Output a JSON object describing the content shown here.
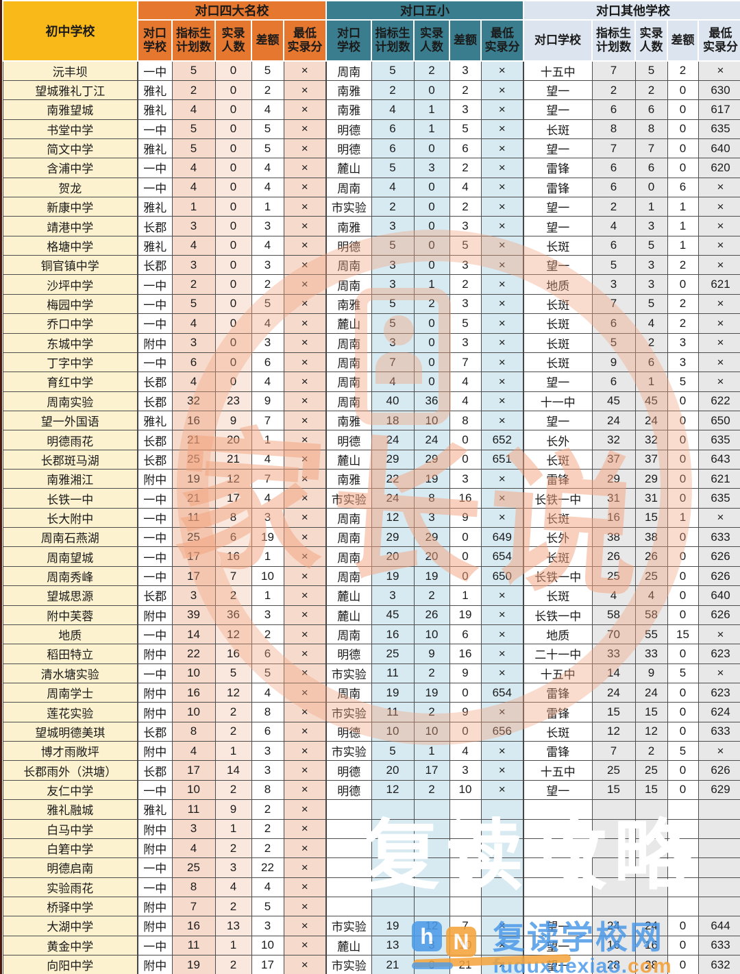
{
  "header": {
    "col_school": "初中学校",
    "groups": [
      {
        "key": "four-famous",
        "title": "对口四大名校",
        "sub": [
          {
            "key": "school",
            "l1": "对口",
            "l2": "学校"
          },
          {
            "key": "plan",
            "l1": "指标生",
            "l2": "计划数"
          },
          {
            "key": "actual",
            "l1": "实录",
            "l2": "人数"
          },
          {
            "key": "diff",
            "l1": "差额",
            "l2": ""
          },
          {
            "key": "minscore",
            "l1": "最低",
            "l2": "实录分"
          }
        ]
      },
      {
        "key": "five-small",
        "title": "对口五小",
        "sub": [
          {
            "key": "school",
            "l1": "对口",
            "l2": "学校"
          },
          {
            "key": "plan",
            "l1": "指标生",
            "l2": "计划数"
          },
          {
            "key": "actual",
            "l1": "实录",
            "l2": "人数"
          },
          {
            "key": "diff",
            "l1": "差额",
            "l2": ""
          },
          {
            "key": "minscore",
            "l1": "最低",
            "l2": "实录分"
          }
        ]
      },
      {
        "key": "other",
        "title": "对口其他学校",
        "sub": [
          {
            "key": "school",
            "l1": "对口学校",
            "l2": ""
          },
          {
            "key": "plan",
            "l1": "指标生",
            "l2": "计划数"
          },
          {
            "key": "actual",
            "l1": "实录",
            "l2": "人数"
          },
          {
            "key": "diff",
            "l1": "差额",
            "l2": ""
          },
          {
            "key": "minscore",
            "l1": "最低",
            "l2": "实录分"
          }
        ]
      }
    ]
  },
  "rows": [
    {
      "name": "沅丰坝",
      "c": [
        "一中",
        "5",
        "0",
        "5",
        "×",
        "周南",
        "5",
        "2",
        "3",
        "×",
        "十五中",
        "7",
        "5",
        "2",
        "×"
      ]
    },
    {
      "name": "望城雅礼丁江",
      "c": [
        "雅礼",
        "2",
        "0",
        "2",
        "×",
        "南雅",
        "2",
        "0",
        "2",
        "×",
        "望一",
        "2",
        "2",
        "0",
        "630"
      ]
    },
    {
      "name": "南雅望城",
      "c": [
        "雅礼",
        "4",
        "0",
        "4",
        "×",
        "南雅",
        "4",
        "1",
        "3",
        "×",
        "望一",
        "6",
        "6",
        "0",
        "617"
      ]
    },
    {
      "name": "书堂中学",
      "c": [
        "一中",
        "5",
        "0",
        "5",
        "×",
        "明德",
        "6",
        "1",
        "5",
        "×",
        "长斑",
        "8",
        "8",
        "0",
        "635"
      ]
    },
    {
      "name": "简文中学",
      "c": [
        "雅礼",
        "5",
        "0",
        "5",
        "×",
        "明德",
        "6",
        "0",
        "6",
        "×",
        "望一",
        "7",
        "7",
        "0",
        "640"
      ]
    },
    {
      "name": "含浦中学",
      "c": [
        "一中",
        "4",
        "0",
        "4",
        "×",
        "麓山",
        "5",
        "3",
        "2",
        "×",
        "雷锋",
        "6",
        "6",
        "0",
        "620"
      ]
    },
    {
      "name": "贺龙",
      "c": [
        "一中",
        "4",
        "0",
        "4",
        "×",
        "周南",
        "4",
        "0",
        "4",
        "×",
        "雷锋",
        "6",
        "0",
        "6",
        "×"
      ]
    },
    {
      "name": "新康中学",
      "c": [
        "雅礼",
        "1",
        "0",
        "1",
        "×",
        "市实验",
        "2",
        "0",
        "2",
        "×",
        "望一",
        "2",
        "1",
        "1",
        "×"
      ]
    },
    {
      "name": "靖港中学",
      "c": [
        "长郡",
        "3",
        "0",
        "3",
        "×",
        "南雅",
        "3",
        "0",
        "3",
        "×",
        "望一",
        "4",
        "3",
        "1",
        "×"
      ]
    },
    {
      "name": "格塘中学",
      "c": [
        "雅礼",
        "4",
        "0",
        "4",
        "×",
        "明德",
        "5",
        "0",
        "5",
        "×",
        "长斑",
        "6",
        "5",
        "1",
        "×"
      ]
    },
    {
      "name": "铜官镇中学",
      "c": [
        "长郡",
        "3",
        "0",
        "3",
        "×",
        "周南",
        "3",
        "0",
        "3",
        "×",
        "望一",
        "5",
        "3",
        "2",
        "×"
      ]
    },
    {
      "name": "沙坪中学",
      "c": [
        "一中",
        "2",
        "0",
        "2",
        "×",
        "周南",
        "3",
        "1",
        "2",
        "×",
        "地质",
        "3",
        "3",
        "0",
        "621"
      ]
    },
    {
      "name": "梅园中学",
      "c": [
        "一中",
        "5",
        "0",
        "5",
        "×",
        "南雅",
        "5",
        "2",
        "3",
        "×",
        "长斑",
        "7",
        "5",
        "2",
        "×"
      ]
    },
    {
      "name": "乔口中学",
      "c": [
        "一中",
        "4",
        "0",
        "4",
        "×",
        "麓山",
        "5",
        "0",
        "5",
        "×",
        "长斑",
        "6",
        "4",
        "2",
        "×"
      ]
    },
    {
      "name": "东城中学",
      "c": [
        "附中",
        "3",
        "0",
        "3",
        "×",
        "周南",
        "3",
        "0",
        "3",
        "×",
        "长斑",
        "5",
        "2",
        "3",
        "×"
      ]
    },
    {
      "name": "丁字中学",
      "c": [
        "一中",
        "6",
        "0",
        "6",
        "×",
        "周南",
        "7",
        "0",
        "7",
        "×",
        "长斑",
        "9",
        "6",
        "3",
        "×"
      ]
    },
    {
      "name": "育红中学",
      "c": [
        "长郡",
        "4",
        "0",
        "4",
        "×",
        "周南",
        "4",
        "0",
        "4",
        "×",
        "望一",
        "6",
        "1",
        "5",
        "×"
      ]
    },
    {
      "name": "周南实验",
      "c": [
        "长郡",
        "32",
        "23",
        "9",
        "×",
        "周南",
        "40",
        "36",
        "4",
        "×",
        "十一中",
        "45",
        "45",
        "0",
        "622"
      ]
    },
    {
      "name": "望一外国语",
      "c": [
        "雅礼",
        "16",
        "9",
        "7",
        "×",
        "南雅",
        "18",
        "10",
        "8",
        "×",
        "望一",
        "24",
        "24",
        "0",
        "650"
      ]
    },
    {
      "name": "明德雨花",
      "c": [
        "长郡",
        "21",
        "20",
        "1",
        "×",
        "明德",
        "24",
        "24",
        "0",
        "652",
        "长外",
        "32",
        "32",
        "0",
        "635"
      ]
    },
    {
      "name": "长郡斑马湖",
      "c": [
        "长郡",
        "25",
        "21",
        "4",
        "×",
        "麓山",
        "29",
        "29",
        "0",
        "651",
        "长斑",
        "37",
        "37",
        "0",
        "643"
      ]
    },
    {
      "name": "南雅湘江",
      "c": [
        "附中",
        "19",
        "12",
        "7",
        "×",
        "南雅",
        "22",
        "19",
        "3",
        "×",
        "雷锋",
        "29",
        "29",
        "0",
        "621"
      ]
    },
    {
      "name": "长铁一中",
      "c": [
        "一中",
        "21",
        "17",
        "4",
        "×",
        "市实验",
        "24",
        "8",
        "16",
        "×",
        "长铁一中",
        "31",
        "31",
        "0",
        "635"
      ]
    },
    {
      "name": "长大附中",
      "c": [
        "一中",
        "11",
        "8",
        "3",
        "×",
        "周南",
        "12",
        "3",
        "9",
        "×",
        "长斑",
        "16",
        "15",
        "1",
        "×"
      ]
    },
    {
      "name": "周南石燕湖",
      "c": [
        "一中",
        "25",
        "6",
        "19",
        "×",
        "周南",
        "29",
        "29",
        "0",
        "649",
        "长外",
        "38",
        "38",
        "0",
        "633"
      ]
    },
    {
      "name": "周南望城",
      "c": [
        "一中",
        "17",
        "16",
        "1",
        "×",
        "周南",
        "20",
        "20",
        "0",
        "654",
        "长斑",
        "26",
        "26",
        "0",
        "626"
      ]
    },
    {
      "name": "周南秀峰",
      "c": [
        "一中",
        "17",
        "7",
        "10",
        "×",
        "周南",
        "19",
        "19",
        "0",
        "650",
        "长铁一中",
        "25",
        "25",
        "0",
        "626"
      ]
    },
    {
      "name": "望城思源",
      "c": [
        "长郡",
        "3",
        "2",
        "1",
        "×",
        "麓山",
        "3",
        "2",
        "1",
        "×",
        "长斑",
        "4",
        "4",
        "0",
        "640"
      ]
    },
    {
      "name": "附中芙蓉",
      "c": [
        "附中",
        "39",
        "36",
        "3",
        "×",
        "麓山",
        "45",
        "26",
        "19",
        "×",
        "长铁一中",
        "58",
        "58",
        "0",
        "626"
      ]
    },
    {
      "name": "地质",
      "c": [
        "一中",
        "14",
        "12",
        "2",
        "×",
        "周南",
        "16",
        "10",
        "6",
        "×",
        "地质",
        "70",
        "55",
        "15",
        "×"
      ]
    },
    {
      "name": "稻田特立",
      "c": [
        "附中",
        "22",
        "16",
        "6",
        "×",
        "明德",
        "25",
        "9",
        "16",
        "×",
        "二十一中",
        "33",
        "33",
        "0",
        "623"
      ]
    },
    {
      "name": "清水塘实验",
      "c": [
        "一中",
        "10",
        "5",
        "5",
        "×",
        "市实验",
        "11",
        "2",
        "9",
        "×",
        "十五中",
        "14",
        "9",
        "5",
        "×"
      ]
    },
    {
      "name": "周南学士",
      "c": [
        "附中",
        "16",
        "12",
        "4",
        "×",
        "周南",
        "19",
        "19",
        "0",
        "654",
        "雷锋",
        "24",
        "24",
        "0",
        "623"
      ]
    },
    {
      "name": "莲花实验",
      "c": [
        "附中",
        "10",
        "2",
        "8",
        "×",
        "市实验",
        "11",
        "2",
        "9",
        "×",
        "雷锋",
        "15",
        "15",
        "0",
        "624"
      ]
    },
    {
      "name": "望城明德美琪",
      "c": [
        "长郡",
        "8",
        "2",
        "6",
        "×",
        "明德",
        "10",
        "10",
        "0",
        "656",
        "长斑",
        "12",
        "12",
        "0",
        "633"
      ]
    },
    {
      "name": "博才雨敞坪",
      "c": [
        "附中",
        "4",
        "1",
        "3",
        "×",
        "市实验",
        "5",
        "1",
        "4",
        "×",
        "雷锋",
        "7",
        "2",
        "5",
        "×"
      ]
    },
    {
      "name": "长郡雨外（洪塘）",
      "c": [
        "长郡",
        "17",
        "14",
        "3",
        "×",
        "明德",
        "20",
        "17",
        "3",
        "×",
        "十五中",
        "25",
        "25",
        "0",
        "626"
      ]
    },
    {
      "name": "友仁中学",
      "c": [
        "一中",
        "10",
        "2",
        "8",
        "×",
        "明德",
        "12",
        "2",
        "10",
        "×",
        "望一",
        "15",
        "15",
        "0",
        "629"
      ]
    },
    {
      "name": "雅礼融城",
      "c": [
        "雅礼",
        "11",
        "9",
        "2",
        "×",
        "",
        "",
        "",
        "",
        "",
        "",
        "",
        "",
        "",
        ""
      ]
    },
    {
      "name": "白马中学",
      "c": [
        "附中",
        "3",
        "1",
        "2",
        "×",
        "",
        "",
        "",
        "",
        "",
        "",
        "",
        "",
        "",
        ""
      ]
    },
    {
      "name": "白箬中学",
      "c": [
        "附中",
        "4",
        "2",
        "2",
        "×",
        "",
        "",
        "",
        "",
        "",
        "",
        "",
        "",
        "",
        ""
      ]
    },
    {
      "name": "明德启南",
      "c": [
        "一中",
        "25",
        "3",
        "22",
        "×",
        "",
        "",
        "",
        "",
        "",
        "",
        "",
        "",
        "",
        ""
      ]
    },
    {
      "name": "实验雨花",
      "c": [
        "一中",
        "8",
        "4",
        "4",
        "×",
        "",
        "",
        "",
        "",
        "",
        "",
        "",
        "",
        "",
        ""
      ]
    },
    {
      "name": "桥驿中学",
      "c": [
        "附中",
        "7",
        "2",
        "5",
        "×",
        "",
        "",
        "",
        "",
        "",
        "",
        "",
        "",
        "",
        ""
      ]
    },
    {
      "name": "大湖中学",
      "c": [
        "附中",
        "16",
        "13",
        "3",
        "×",
        "市实验",
        "19",
        "12",
        "7",
        "×",
        "望一",
        "24",
        "24",
        "0",
        "644"
      ]
    },
    {
      "name": "黄金中学",
      "c": [
        "一中",
        "11",
        "1",
        "10",
        "×",
        "麓山",
        "13",
        "3",
        "10",
        "×",
        "望一",
        "16",
        "16",
        "0",
        "633"
      ]
    },
    {
      "name": "向阳中学",
      "c": [
        "附中",
        "19",
        "2",
        "17",
        "×",
        "市实验",
        "21",
        "0",
        "21",
        "×",
        "望一",
        "28",
        "28",
        "0",
        "632"
      ]
    }
  ],
  "banner": {
    "text": "复读攻略",
    "bg": "#f8820c"
  },
  "watermark": {
    "text": "家长说"
  },
  "logo": {
    "icon_h": "h",
    "icon_n": "N",
    "title": "复读学校网",
    "domain_blue": "fuduxuexiao.",
    "domain_orange": "com"
  },
  "colors": {
    "group1_header": "#e5772e",
    "group2_header": "#3a7d8e",
    "group3_header": "#dce5ef",
    "school_col_header": "#f9b919",
    "banner": "#f8820c",
    "logo_blue": "#4d9be8",
    "logo_orange": "#f5a33b"
  }
}
